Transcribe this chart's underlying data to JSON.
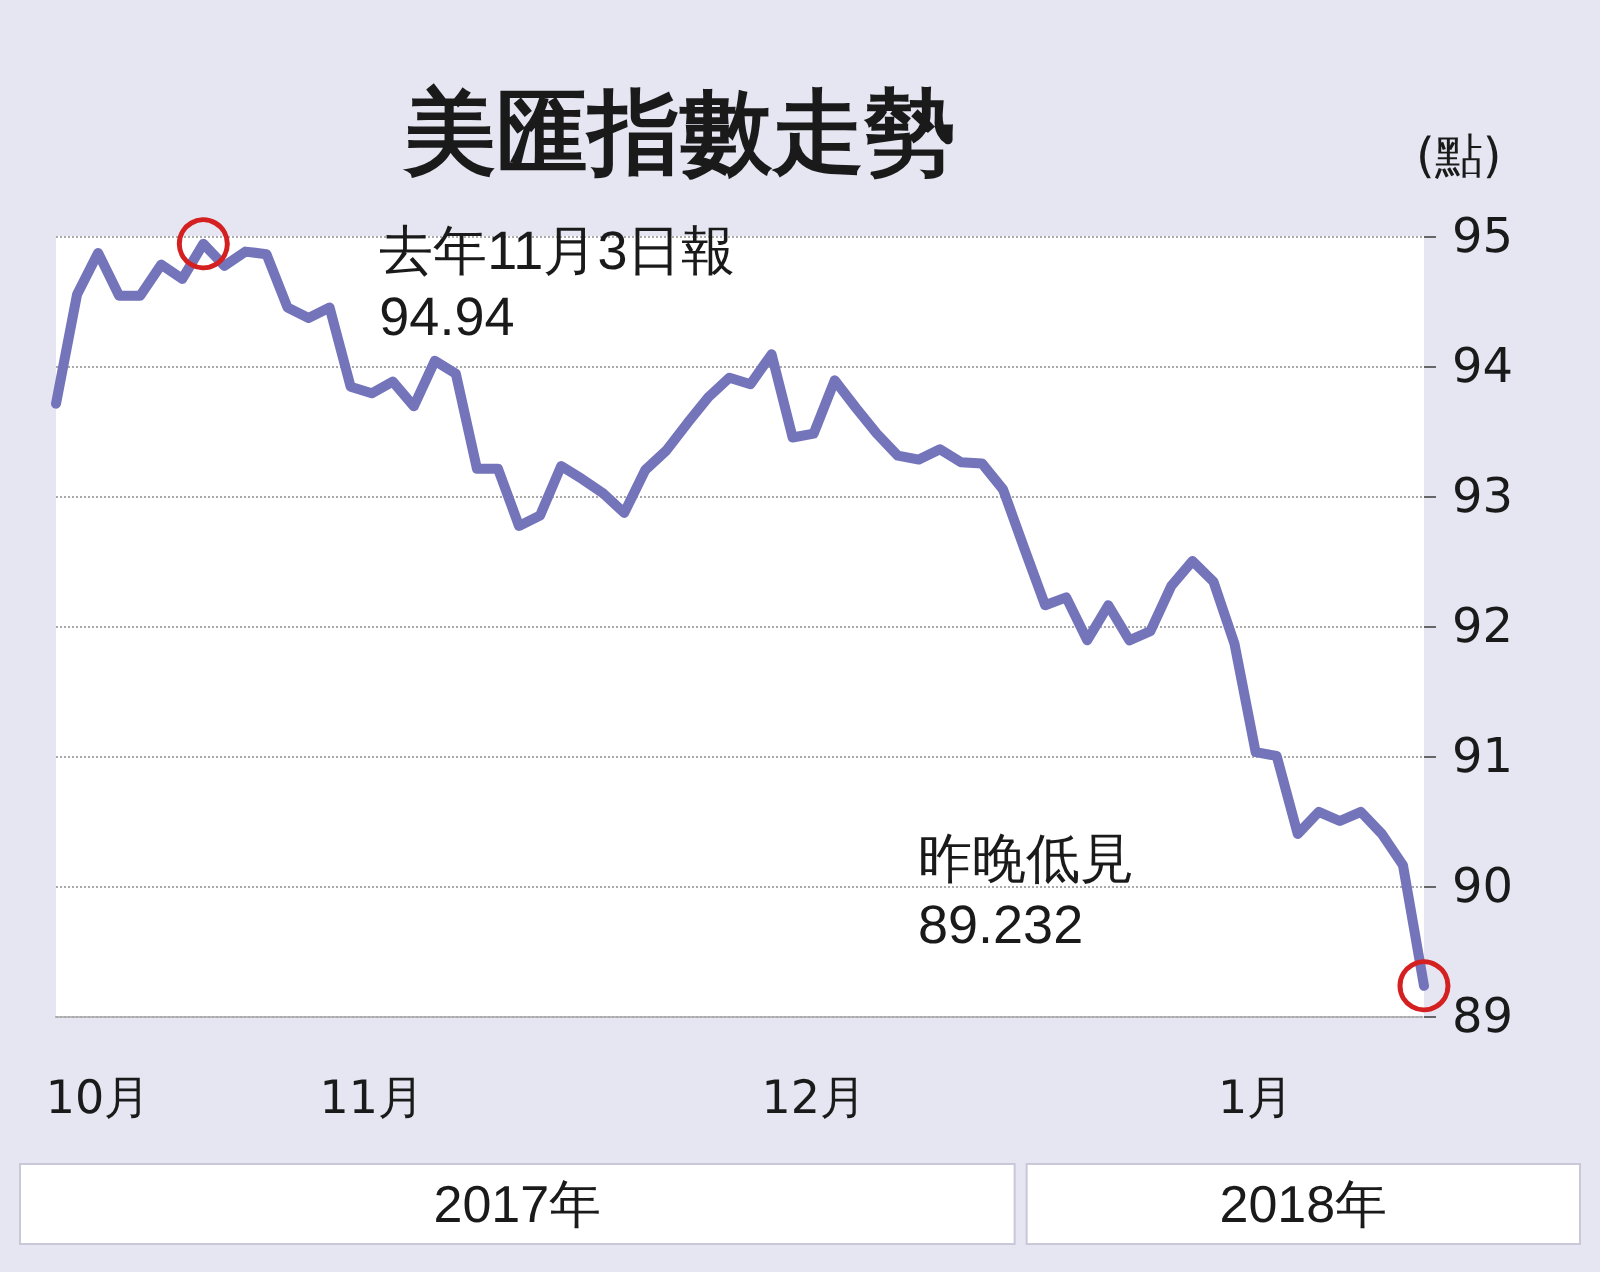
{
  "chart_data": {
    "type": "line",
    "title": "美匯指數走勢",
    "ylabel": "(點)",
    "categories": [
      null,
      null,
      "10月",
      null,
      null,
      null,
      null,
      null,
      null,
      null,
      null,
      null,
      null,
      null,
      null,
      "11月",
      null,
      null,
      null,
      null,
      null,
      null,
      null,
      null,
      null,
      null,
      null,
      null,
      null,
      null,
      null,
      null,
      null,
      null,
      null,
      null,
      "12月",
      null,
      null,
      null,
      null,
      null,
      null,
      null,
      null,
      null,
      null,
      null,
      null,
      null,
      null,
      null,
      null,
      null,
      null,
      null,
      null,
      "1月",
      null,
      null,
      null,
      null,
      null,
      null,
      null,
      null
    ],
    "series": [
      {
        "color": "#7474bb",
        "values": [
          93.71,
          94.55,
          94.87,
          94.54,
          94.54,
          94.78,
          94.67,
          94.94,
          94.77,
          94.88,
          94.86,
          94.45,
          94.37,
          94.45,
          93.84,
          93.79,
          93.88,
          93.69,
          94.04,
          93.94,
          93.21,
          93.21,
          92.77,
          92.85,
          93.23,
          93.13,
          93.02,
          92.87,
          93.2,
          93.35,
          93.56,
          93.76,
          93.91,
          93.86,
          94.09,
          93.45,
          93.48,
          93.89,
          93.68,
          93.48,
          93.31,
          93.28,
          93.36,
          93.26,
          93.25,
          93.05,
          92.6,
          92.16,
          92.22,
          91.89,
          92.16,
          91.89,
          91.96,
          92.31,
          92.5,
          92.34,
          91.86,
          91.03,
          91.0,
          90.4,
          90.57,
          90.5,
          90.57,
          90.4,
          90.16,
          89.232
        ]
      }
    ],
    "ylim": [
      89,
      95
    ],
    "yticks": [
      89,
      90,
      91,
      92,
      93,
      94,
      95
    ],
    "grid": "y",
    "marker": "none",
    "line_style": "solid",
    "annotations": [
      "去年11月3日報\n94.94",
      "昨晚低見\n89.232",
      "2017年",
      "2018年"
    ]
  }
}
